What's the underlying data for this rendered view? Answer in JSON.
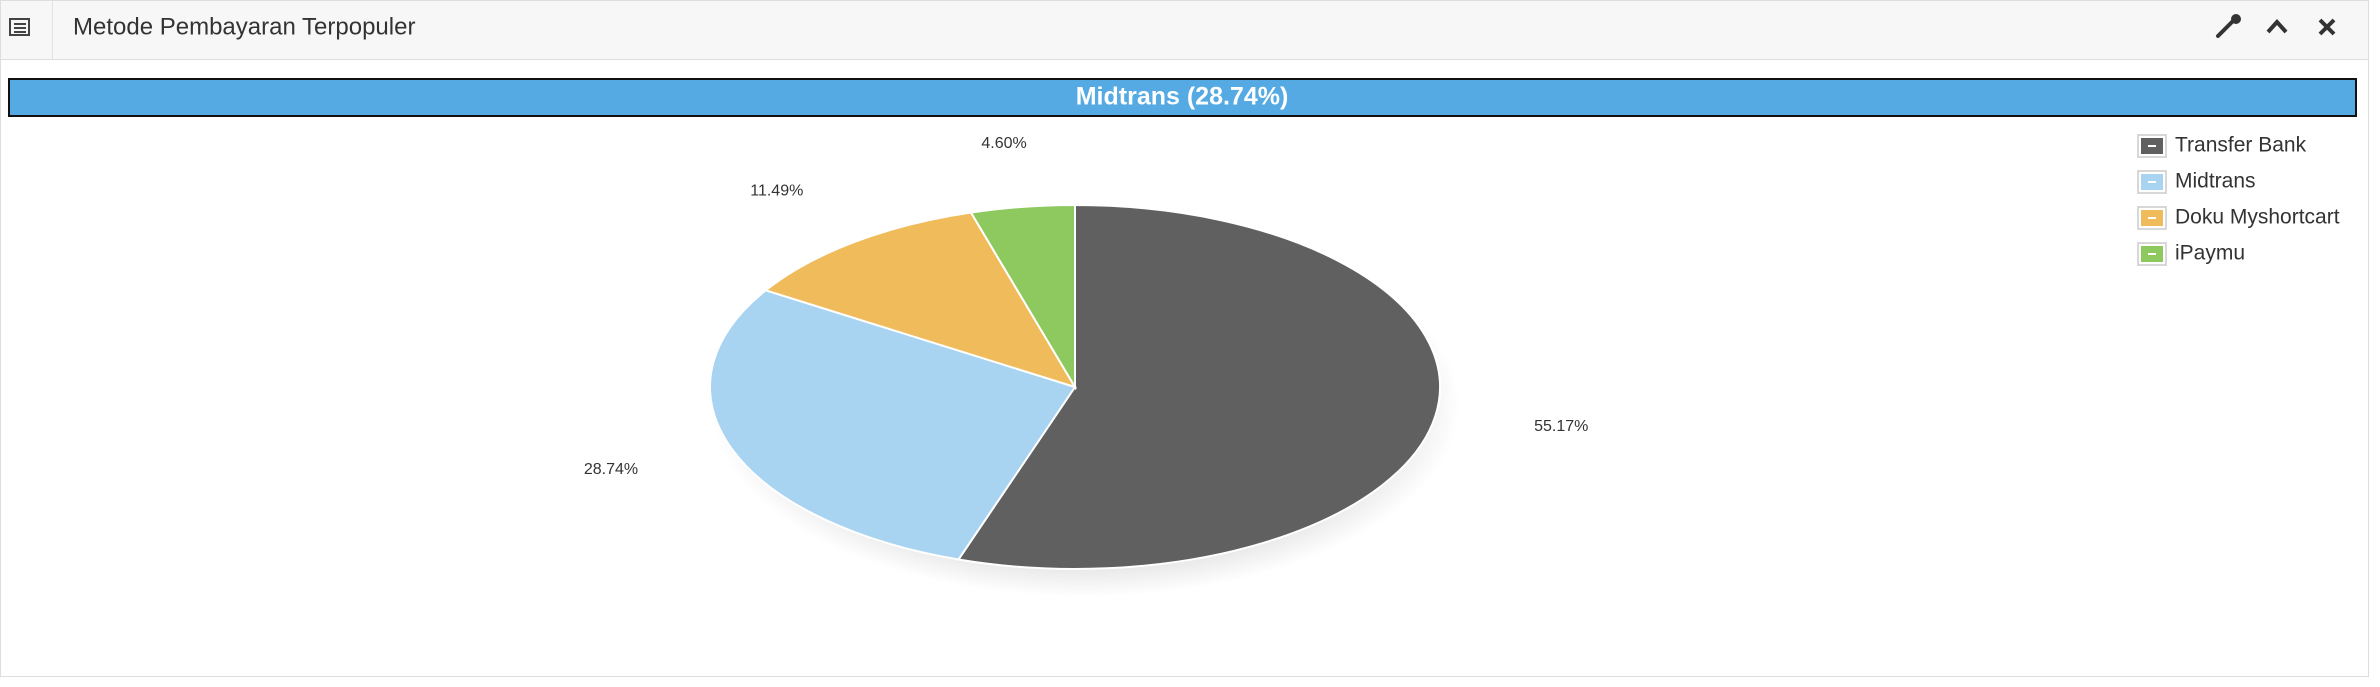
{
  "header": {
    "title": "Metode Pembayaran Terpopuler"
  },
  "chart_data": {
    "type": "pie",
    "highlight": "Midtrans (28.74%)",
    "categories": [
      "Transfer Bank",
      "Midtrans",
      "Doku Myshortcart",
      "iPaymu"
    ],
    "values": [
      55.17,
      28.74,
      11.49,
      4.6
    ],
    "value_labels": [
      "55.17%",
      "28.74%",
      "11.49%",
      "4.60%"
    ],
    "colors": [
      "#606060",
      "#a8d4f2",
      "#f0bb5a",
      "#8dc95e"
    ]
  }
}
